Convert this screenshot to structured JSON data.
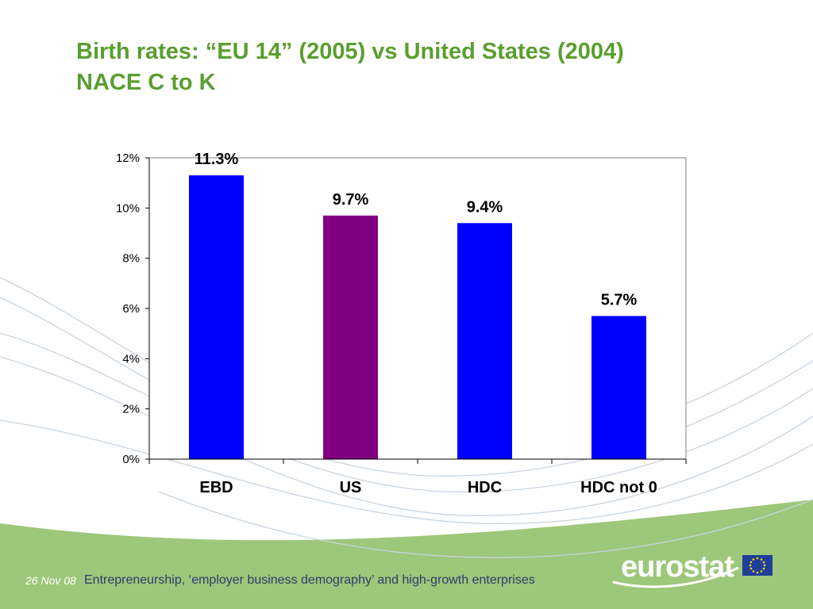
{
  "title": {
    "line1": "Birth rates: “EU 14” (2005) vs United States (2004)",
    "line2": "NACE C to K"
  },
  "footer": {
    "date": "26 Nov 08",
    "text": "Entrepreneurship, ‘employer business demography’ and high-growth enterprises"
  },
  "logo": {
    "text": "eurostat",
    "flag_icon": "eu-flag-icon"
  },
  "colors": {
    "title": "#5a9e2f",
    "bar_blue": "#0000ff",
    "bar_purple": "#800080",
    "footer_band": "#9dc77a"
  },
  "chart_data": {
    "type": "bar",
    "categories": [
      "EBD",
      "US",
      "HDC",
      "HDC not 0"
    ],
    "values": [
      11.3,
      9.7,
      9.4,
      5.7
    ],
    "value_labels": [
      "11.3%",
      "9.7%",
      "9.4%",
      "5.7%"
    ],
    "bar_colors": [
      "#0000ff",
      "#800080",
      "#0000ff",
      "#0000ff"
    ],
    "y_ticks": [
      "0%",
      "2%",
      "4%",
      "6%",
      "8%",
      "10%",
      "12%"
    ],
    "ylim": [
      0,
      12
    ],
    "grid": false,
    "legend": "none"
  }
}
